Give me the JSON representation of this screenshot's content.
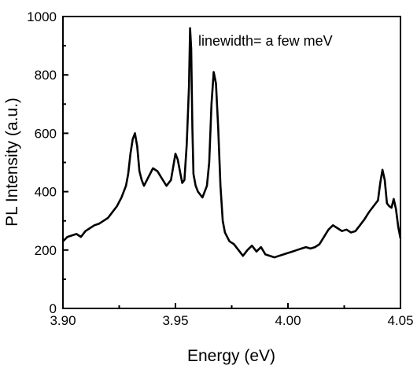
{
  "chart_data": {
    "type": "line",
    "xlabel": "Energy (eV)",
    "ylabel": "PL Intensity (a.u.)",
    "xlim": [
      3.9,
      4.05
    ],
    "ylim": [
      0,
      1000
    ],
    "x_ticks": [
      "3.90",
      "3.95",
      "4.00",
      "4.05"
    ],
    "y_ticks": [
      "0",
      "200",
      "400",
      "600",
      "800",
      "1000"
    ],
    "annotation": "linewidth= a few meV",
    "grid": false,
    "series": [
      {
        "color": "#000000",
        "x": [
          3.9,
          3.902,
          3.904,
          3.906,
          3.908,
          3.91,
          3.912,
          3.914,
          3.916,
          3.918,
          3.92,
          3.922,
          3.924,
          3.926,
          3.928,
          3.929,
          3.93,
          3.931,
          3.932,
          3.933,
          3.934,
          3.935,
          3.936,
          3.938,
          3.94,
          3.942,
          3.944,
          3.946,
          3.948,
          3.95,
          3.951,
          3.952,
          3.953,
          3.954,
          3.955,
          3.956,
          3.9565,
          3.957,
          3.9575,
          3.958,
          3.959,
          3.96,
          3.962,
          3.964,
          3.965,
          3.966,
          3.967,
          3.968,
          3.969,
          3.97,
          3.971,
          3.972,
          3.974,
          3.976,
          3.978,
          3.98,
          3.982,
          3.984,
          3.986,
          3.988,
          3.99,
          3.992,
          3.994,
          3.996,
          3.998,
          4.0,
          4.002,
          4.004,
          4.006,
          4.008,
          4.01,
          4.012,
          4.014,
          4.016,
          4.018,
          4.02,
          4.022,
          4.024,
          4.026,
          4.028,
          4.03,
          4.032,
          4.034,
          4.036,
          4.038,
          4.04,
          4.041,
          4.042,
          4.043,
          4.044,
          4.045,
          4.046,
          4.047,
          4.048,
          4.049,
          4.05
        ],
        "y": [
          230,
          245,
          250,
          255,
          245,
          265,
          275,
          285,
          290,
          300,
          310,
          330,
          350,
          380,
          420,
          460,
          530,
          580,
          600,
          555,
          470,
          440,
          420,
          450,
          480,
          470,
          445,
          420,
          440,
          530,
          510,
          470,
          430,
          440,
          560,
          760,
          960,
          890,
          620,
          460,
          420,
          400,
          380,
          420,
          500,
          700,
          810,
          770,
          620,
          420,
          300,
          260,
          230,
          220,
          200,
          180,
          200,
          215,
          195,
          210,
          185,
          180,
          175,
          180,
          185,
          190,
          195,
          200,
          205,
          210,
          205,
          210,
          220,
          245,
          270,
          285,
          275,
          265,
          270,
          260,
          265,
          285,
          305,
          330,
          350,
          370,
          430,
          475,
          440,
          360,
          350,
          345,
          375,
          340,
          280,
          240
        ]
      }
    ]
  }
}
